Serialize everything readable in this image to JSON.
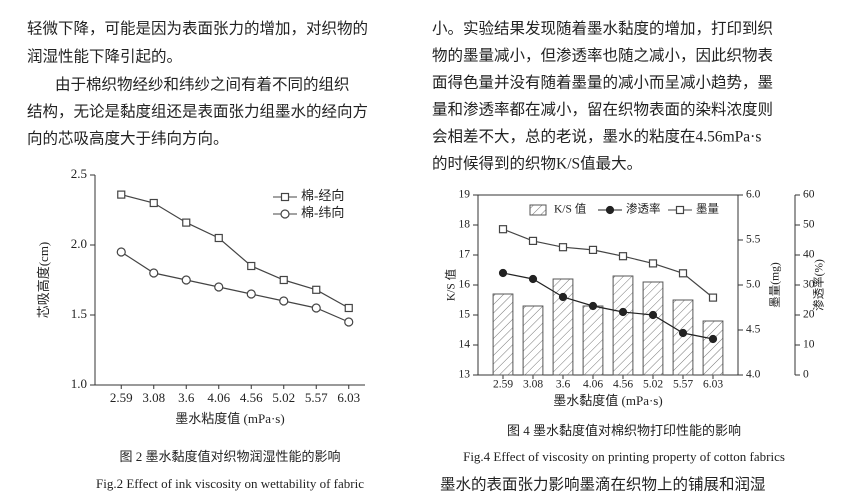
{
  "left_text": [
    "轻微下降，可能是因为表面张力的增加，对织物的",
    "润湿性能下降引起的。",
    "由于棉织物经纱和纬纱之间有着不同的组织",
    "结构，无论是黏度组还是表面张力组墨水的经向方",
    "向的芯吸高度大于纬向方向。"
  ],
  "right_text": [
    "小。实验结果发现随着墨水黏度的增加，打印到织",
    "物的墨量减小，但渗透率也随之减小，因此织物表",
    "面得色量并没有随着墨量的减小而呈减小趋势，墨",
    "量和渗透率都在减小，留在织物表面的染料浓度则",
    "会相差不大，总的老说，墨水的粘度在4.56mPa·s",
    "的时候得到的织物K/S值最大。"
  ],
  "chart_data": [
    {
      "type": "line",
      "x_label": "墨水粘度值 (mPa·s)",
      "y_label": "芯吸高度(cm)",
      "caption_cn": "图 2 墨水黏度值对织物润湿性能的影响",
      "caption_en": "Fig.2 Effect of ink viscosity on wettability of fabric",
      "categories": [
        "2.59",
        "3.08",
        "3.6",
        "4.06",
        "4.56",
        "5.02",
        "5.57",
        "6.03"
      ],
      "ylim": [
        1,
        2.5
      ],
      "yticks": [
        {
          "value": 1,
          "label": "1.0"
        },
        1.5,
        {
          "value": 2,
          "label": "2.0"
        },
        2.5
      ],
      "legend": "upper right",
      "series": [
        {
          "name": "棉-经向",
          "type": "line",
          "marker": "square",
          "color": "#444",
          "axis": "y",
          "values": [
            2.36,
            2.3,
            2.16,
            2.05,
            1.85,
            1.75,
            1.68,
            1.55
          ]
        },
        {
          "name": "棉-纬向",
          "type": "line",
          "marker": "circle",
          "color": "#444",
          "axis": "y",
          "values": [
            1.95,
            1.8,
            1.75,
            1.7,
            1.65,
            1.6,
            1.55,
            1.45
          ]
        }
      ]
    },
    {
      "type": "bar",
      "x_label": "墨水黏度值 (mPa·s)",
      "y_label": "K/S 值",
      "y2_label": "墨量(mg)",
      "y3_label": "渗透率(%)",
      "caption_cn": "图 4 墨水黏度值对棉织物打印性能的影响",
      "caption_en": "Fig.4 Effect of viscosity on printing property of cotton fabrics",
      "categories": [
        "2.59",
        "3.08",
        "3.6",
        "4.06",
        "4.56",
        "5.02",
        "5.57",
        "6.03"
      ],
      "ylim": [
        13,
        19
      ],
      "yticks": [
        13,
        14,
        15,
        16,
        17,
        18,
        19
      ],
      "y2lim": [
        4,
        6
      ],
      "y2ticks": [
        {
          "value": 4,
          "label": "4.0"
        },
        4.5,
        {
          "value": 5,
          "label": "5.0"
        },
        5.5,
        {
          "value": 6,
          "label": "6.0"
        }
      ],
      "y3lim": [
        0,
        60
      ],
      "y3ticks": [
        0,
        10,
        20,
        30,
        40,
        50,
        60
      ],
      "legend": "top",
      "series": [
        {
          "name": "K/S 值",
          "type": "bar",
          "pattern": "hatch",
          "color": "#555",
          "axis": "y",
          "values": [
            15.7,
            15.3,
            16.2,
            15.3,
            16.3,
            16.1,
            15.5,
            14.8
          ]
        },
        {
          "name": "渗透率",
          "type": "line",
          "marker": "filled-circle",
          "color": "#222",
          "axis": "y3",
          "values": [
            34,
            32,
            26,
            23,
            21,
            20,
            14,
            12
          ]
        },
        {
          "name": "墨量",
          "type": "line",
          "marker": "square",
          "color": "#444",
          "axis": "y2",
          "values": [
            5.62,
            5.49,
            5.42,
            5.39,
            5.32,
            5.24,
            5.13,
            4.86
          ]
        }
      ]
    }
  ],
  "footer_text": "墨水的表面张力影响墨滴在织物上的铺展和润湿"
}
